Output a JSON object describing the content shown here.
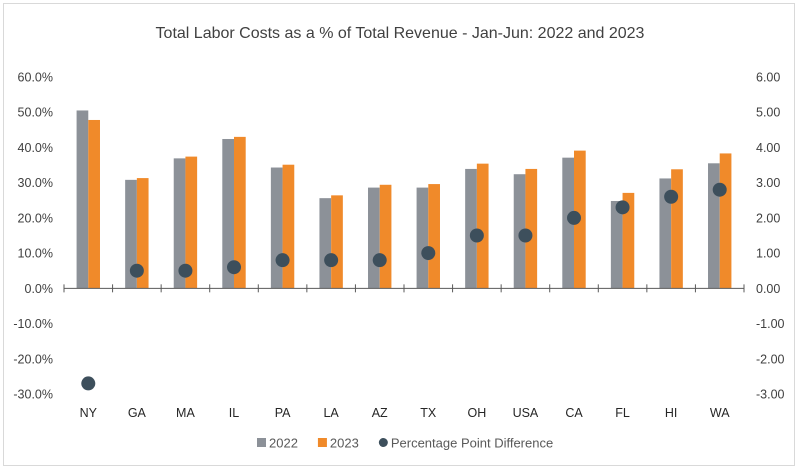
{
  "chart_data": {
    "type": "bar",
    "title": "Total Labor Costs as a % of Total Revenue - Jan-Jun: 2022 and 2023",
    "xlabel": "",
    "ylabel": "",
    "ylabel_right": "",
    "categories": [
      "NY",
      "GA",
      "MA",
      "IL",
      "PA",
      "LA",
      "AZ",
      "TX",
      "OH",
      "USA",
      "CA",
      "FL",
      "HI",
      "WA"
    ],
    "series": [
      {
        "name": "2022",
        "type": "bar",
        "axis": "left",
        "color": "#8c9198",
        "values": [
          50.5,
          30.8,
          36.9,
          42.4,
          34.3,
          25.6,
          28.6,
          28.6,
          33.9,
          32.4,
          37.1,
          24.8,
          31.2,
          35.5
        ]
      },
      {
        "name": "2023",
        "type": "bar",
        "axis": "left",
        "color": "#f08a2a",
        "values": [
          47.8,
          31.3,
          37.4,
          43.0,
          35.1,
          26.4,
          29.4,
          29.6,
          35.4,
          33.9,
          39.1,
          27.1,
          33.8,
          38.3
        ]
      },
      {
        "name": "Percentage Point Difference",
        "type": "scatter",
        "axis": "right",
        "color": "#3d4f5c",
        "values": [
          -2.7,
          0.5,
          0.5,
          0.6,
          0.8,
          0.8,
          0.8,
          1.0,
          1.5,
          1.5,
          2.0,
          2.3,
          2.6,
          2.8
        ]
      }
    ],
    "ylim": [
      -30,
      60
    ],
    "ylim_right": [
      -3,
      6
    ],
    "yticks": [
      "60.0%",
      "50.0%",
      "40.0%",
      "30.0%",
      "20.0%",
      "10.0%",
      "0.0%",
      "-10.0%",
      "-20.0%",
      "-30.0%"
    ],
    "yticks_right": [
      "6.00",
      "5.00",
      "4.00",
      "3.00",
      "2.00",
      "1.00",
      "0.00",
      "-1.00",
      "-2.00",
      "-3.00"
    ],
    "grid": false,
    "legend": {
      "position": "bottom",
      "entries": [
        {
          "label": "2022",
          "marker": "square",
          "color": "#8c9198"
        },
        {
          "label": "2023",
          "marker": "square",
          "color": "#f08a2a"
        },
        {
          "label": "Percentage Point Difference",
          "marker": "circle",
          "color": "#3d4f5c"
        }
      ]
    }
  }
}
